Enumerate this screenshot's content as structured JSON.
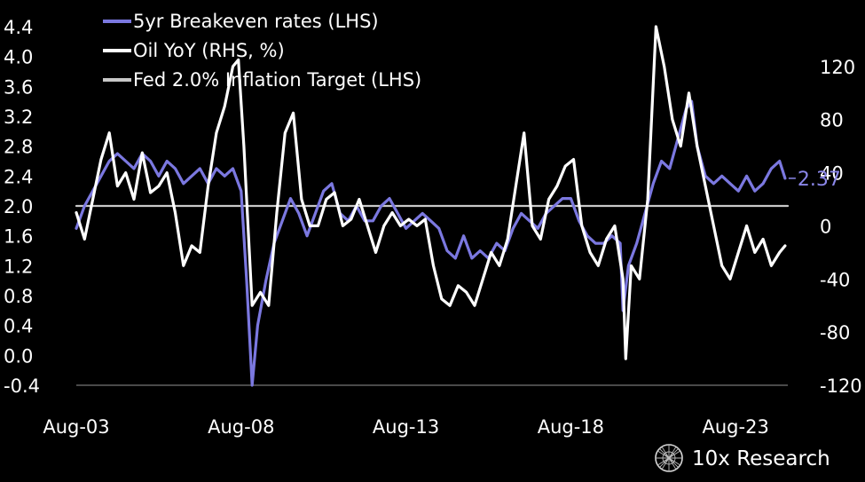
{
  "chart_data": {
    "type": "line",
    "legend": [
      {
        "label": "5yr Breakeven rates (LHS)",
        "color": "#7b78e0"
      },
      {
        "label": "Oil YoY (RHS, %)",
        "color": "#ffffff"
      },
      {
        "label": "Fed 2.0% Inflation Target (LHS)",
        "color": "#c8c8c8"
      }
    ],
    "legend_position": "top-left",
    "grid": false,
    "left_axis": {
      "ticks": [
        "4.4",
        "4.0",
        "3.6",
        "3.2",
        "2.8",
        "2.4",
        "2.0",
        "1.6",
        "1.2",
        "0.8",
        "0.4",
        "0.0",
        "-0.4"
      ],
      "ylim": [
        -0.4,
        4.4
      ]
    },
    "right_axis": {
      "ticks": [
        "120",
        "80",
        "40",
        "0",
        "-40",
        "-80",
        "-120"
      ],
      "ylim": [
        -120,
        150
      ]
    },
    "x_axis": {
      "ticks": [
        "Aug-03",
        "Aug-08",
        "Aug-13",
        "Aug-18",
        "Aug-23"
      ],
      "range": [
        "2003-08",
        "2025-03"
      ]
    },
    "end_label": "2.37",
    "series": [
      {
        "name": "5yr Breakeven rates (LHS)",
        "axis": "left",
        "color": "#7b78e0",
        "x": [
          "2003-08",
          "2003-11",
          "2004-02",
          "2004-05",
          "2004-08",
          "2004-11",
          "2005-02",
          "2005-05",
          "2005-08",
          "2005-11",
          "2006-02",
          "2006-05",
          "2006-08",
          "2006-11",
          "2007-02",
          "2007-05",
          "2007-08",
          "2007-11",
          "2008-02",
          "2008-05",
          "2008-08",
          "2008-10",
          "2008-12",
          "2009-02",
          "2009-05",
          "2009-08",
          "2009-11",
          "2010-02",
          "2010-05",
          "2010-08",
          "2010-11",
          "2011-02",
          "2011-05",
          "2011-08",
          "2011-11",
          "2012-02",
          "2012-05",
          "2012-08",
          "2012-11",
          "2013-02",
          "2013-05",
          "2013-08",
          "2013-11",
          "2014-02",
          "2014-05",
          "2014-08",
          "2014-11",
          "2015-02",
          "2015-05",
          "2015-08",
          "2015-11",
          "2016-02",
          "2016-05",
          "2016-08",
          "2016-11",
          "2017-02",
          "2017-05",
          "2017-08",
          "2017-11",
          "2018-02",
          "2018-05",
          "2018-08",
          "2018-11",
          "2019-02",
          "2019-05",
          "2019-08",
          "2019-11",
          "2020-02",
          "2020-03",
          "2020-05",
          "2020-08",
          "2020-11",
          "2021-02",
          "2021-05",
          "2021-08",
          "2021-11",
          "2022-02",
          "2022-04",
          "2022-06",
          "2022-09",
          "2022-12",
          "2023-03",
          "2023-06",
          "2023-09",
          "2023-12",
          "2024-03",
          "2024-06",
          "2024-09",
          "2024-12",
          "2025-02"
        ],
        "values": [
          1.7,
          2.0,
          2.2,
          2.4,
          2.6,
          2.7,
          2.6,
          2.5,
          2.7,
          2.6,
          2.4,
          2.6,
          2.5,
          2.3,
          2.4,
          2.5,
          2.3,
          2.5,
          2.4,
          2.5,
          2.2,
          1.0,
          -0.4,
          0.4,
          1.0,
          1.5,
          1.8,
          2.1,
          1.9,
          1.6,
          1.9,
          2.2,
          2.3,
          1.9,
          1.8,
          2.0,
          1.8,
          1.8,
          2.0,
          2.1,
          1.9,
          1.7,
          1.8,
          1.9,
          1.8,
          1.7,
          1.4,
          1.3,
          1.6,
          1.3,
          1.4,
          1.3,
          1.5,
          1.4,
          1.7,
          1.9,
          1.8,
          1.7,
          1.9,
          2.0,
          2.1,
          2.1,
          1.8,
          1.6,
          1.5,
          1.5,
          1.6,
          1.5,
          0.6,
          1.2,
          1.5,
          1.9,
          2.3,
          2.6,
          2.5,
          2.9,
          3.3,
          3.4,
          2.8,
          2.4,
          2.3,
          2.4,
          2.3,
          2.2,
          2.4,
          2.2,
          2.3,
          2.5,
          2.6,
          2.37
        ]
      },
      {
        "name": "Oil YoY (RHS, %)",
        "axis": "right",
        "color": "#ffffff",
        "x": [
          "2003-08",
          "2003-11",
          "2004-02",
          "2004-05",
          "2004-08",
          "2004-11",
          "2005-02",
          "2005-05",
          "2005-08",
          "2005-11",
          "2006-02",
          "2006-05",
          "2006-08",
          "2006-11",
          "2007-02",
          "2007-05",
          "2007-08",
          "2007-11",
          "2008-02",
          "2008-05",
          "2008-07",
          "2008-09",
          "2008-12",
          "2009-03",
          "2009-06",
          "2009-09",
          "2009-12",
          "2010-03",
          "2010-06",
          "2010-09",
          "2010-12",
          "2011-03",
          "2011-06",
          "2011-09",
          "2011-12",
          "2012-03",
          "2012-06",
          "2012-09",
          "2012-12",
          "2013-03",
          "2013-06",
          "2013-09",
          "2013-12",
          "2014-03",
          "2014-06",
          "2014-09",
          "2014-12",
          "2015-03",
          "2015-06",
          "2015-09",
          "2015-12",
          "2016-03",
          "2016-06",
          "2016-09",
          "2016-12",
          "2017-03",
          "2017-06",
          "2017-09",
          "2017-12",
          "2018-03",
          "2018-06",
          "2018-09",
          "2018-12",
          "2019-03",
          "2019-06",
          "2019-09",
          "2019-12",
          "2020-03",
          "2020-04",
          "2020-06",
          "2020-09",
          "2020-12",
          "2021-03",
          "2021-06",
          "2021-09",
          "2021-12",
          "2022-03",
          "2022-06",
          "2022-09",
          "2022-12",
          "2023-03",
          "2023-06",
          "2023-09",
          "2023-12",
          "2024-03",
          "2024-06",
          "2024-09",
          "2024-12",
          "2025-02"
        ],
        "values": [
          10,
          -10,
          20,
          50,
          70,
          30,
          40,
          20,
          55,
          25,
          30,
          40,
          10,
          -30,
          -15,
          -20,
          30,
          70,
          90,
          120,
          125,
          60,
          -60,
          -50,
          -60,
          10,
          70,
          85,
          20,
          0,
          0,
          20,
          25,
          0,
          5,
          20,
          0,
          -20,
          0,
          10,
          0,
          5,
          0,
          5,
          -30,
          -55,
          -60,
          -45,
          -50,
          -60,
          -40,
          -20,
          -30,
          -10,
          30,
          70,
          0,
          -10,
          20,
          30,
          45,
          50,
          0,
          -20,
          -30,
          -10,
          0,
          -40,
          -100,
          -30,
          -40,
          20,
          150,
          120,
          80,
          60,
          100,
          60,
          30,
          0,
          -30,
          -40,
          -20,
          0,
          -20,
          -10,
          -30,
          -20,
          -15
        ]
      },
      {
        "name": "Fed 2.0% Inflation Target (LHS)",
        "axis": "left",
        "color": "#c8c8c8",
        "x": [
          "2003-08",
          "2025-03"
        ],
        "values": [
          2.0,
          2.0
        ]
      }
    ]
  },
  "brand": {
    "name": "10x Research"
  }
}
